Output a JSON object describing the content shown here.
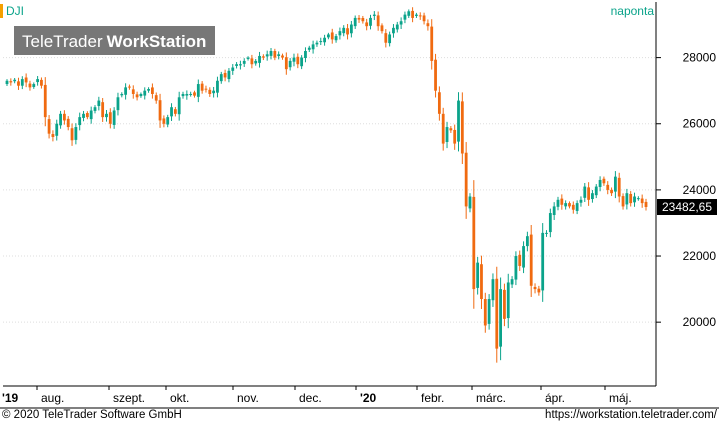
{
  "symbol": "DJI",
  "period": "naponta",
  "watermark": {
    "part1": "TeleTrader",
    "part2": "WorkStation"
  },
  "last_price_label": "23482,65",
  "footer": {
    "copyright": "© 2020 TeleTrader Software GmbH",
    "url": "https://workstation.teletrader.com/"
  },
  "colors": {
    "up": "#0aa38a",
    "down": "#f06a10",
    "symbol_accent": "#f5a000",
    "period_text": "#0aa38a",
    "grid": "#dddddd",
    "axis": "#000000"
  },
  "chart_data": {
    "type": "candlestick",
    "y_axis": {
      "min": 18100,
      "max": 29500,
      "ticks": [
        20000,
        22000,
        24000,
        26000,
        28000
      ],
      "tick_labels": [
        "20000",
        "22000",
        "24000",
        "26000",
        "28000"
      ],
      "position": "right"
    },
    "x_axis": {
      "labels": [
        "'19",
        "aug.",
        "szept.",
        "okt.",
        "nov.",
        "dec.",
        "'20",
        "febr.",
        "márc.",
        "ápr.",
        "máj."
      ]
    },
    "last_value": 23482.65,
    "closes": [
      27300,
      27250,
      27330,
      27150,
      27350,
      27250,
      27100,
      27200,
      27350,
      27150,
      26200,
      25700,
      25600,
      26000,
      26300,
      26100,
      25900,
      25500,
      25900,
      26200,
      26300,
      26200,
      26400,
      26500,
      26700,
      26200,
      26300,
      26000,
      26400,
      26800,
      26900,
      27100,
      27100,
      26900,
      26800,
      26900,
      27000,
      27050,
      26900,
      26700,
      26100,
      26000,
      26200,
      26500,
      26300,
      26800,
      26900,
      26900,
      26900,
      26850,
      27200,
      27000,
      27050,
      26900,
      27000,
      27300,
      27500,
      27400,
      27600,
      27700,
      27800,
      27800,
      27900,
      28000,
      27800,
      27900,
      28050,
      28000,
      28100,
      28200,
      28000,
      28100,
      28000,
      27650,
      27900,
      28000,
      27800,
      28000,
      28200,
      28300,
      28400,
      28450,
      28500,
      28600,
      28700,
      28550,
      28650,
      28800,
      28900,
      28700,
      29000,
      29200,
      29150,
      29100,
      28950,
      29200,
      29300,
      28950,
      28800,
      28450,
      28700,
      28900,
      29000,
      29100,
      29300,
      29400,
      29200,
      29300,
      29250,
      29100,
      28950,
      27900,
      27000,
      26300,
      25400,
      25900,
      25800,
      25400,
      26700,
      25100,
      23500,
      23800,
      21000,
      21800,
      20700,
      19900,
      20700,
      21300,
      19200,
      21000,
      20100,
      21200,
      21300,
      22000,
      21700,
      22300,
      22600,
      21100,
      21000,
      20900,
      22700,
      22700,
      23300,
      23500,
      23700,
      23550,
      23600,
      23500,
      23400,
      23600,
      23700,
      24100,
      23700,
      23900,
      24100,
      24300,
      24200,
      24000,
      23900,
      24400,
      23800,
      23500,
      23900,
      23600,
      23800,
      23750,
      23600,
      23482.65
    ]
  }
}
